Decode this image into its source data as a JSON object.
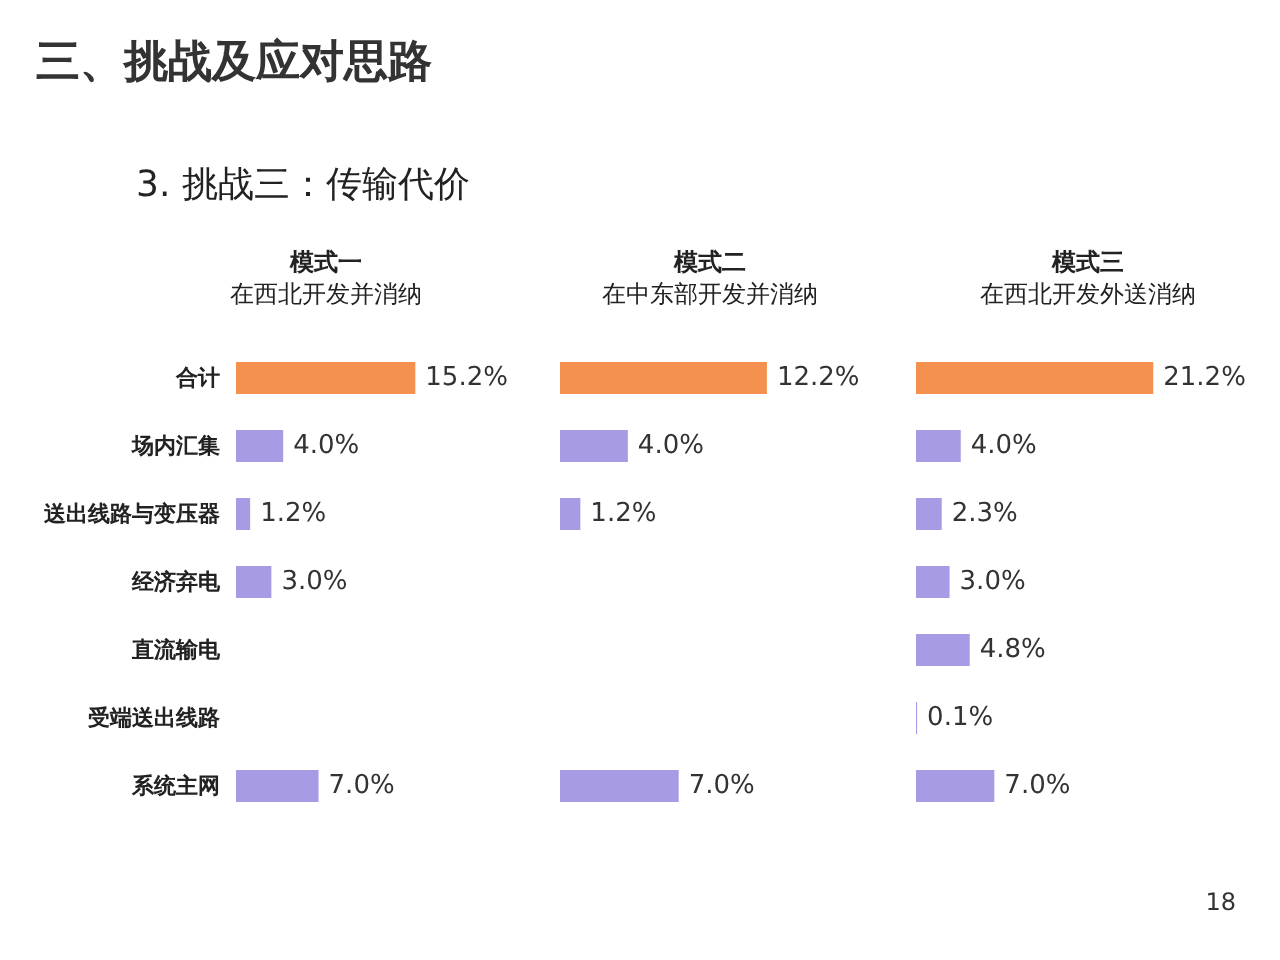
{
  "chart_data": [
    {
      "type": "bar",
      "orientation": "horizontal",
      "title": "模式一",
      "subtitle": "在西北开发并消纳",
      "annotations": [
        "三、挑战及应对思路",
        "3. 挑战三：传输代价",
        "18"
      ],
      "tick_labels": "y",
      "categories": [
        "合计",
        "场内汇集",
        "送出线路与变压器",
        "经济弃电",
        "直流输电",
        "受端送出线路",
        "系统主网"
      ],
      "values": [
        15.2,
        4.0,
        1.2,
        3.0,
        null,
        null,
        7.0
      ],
      "value_labels": [
        "15.2%",
        "4.0%",
        "1.2%",
        "3.0%",
        null,
        null,
        "7.0%"
      ],
      "colors": [
        "#f4914f",
        "#a89be6",
        "#a89be6",
        "#a89be6",
        "#a89be6",
        "#a89be6",
        "#a89be6"
      ]
    },
    {
      "type": "bar",
      "orientation": "horizontal",
      "title": "模式二",
      "subtitle": "在中东部开发并消纳",
      "tick_labels": false,
      "categories": [
        null,
        null,
        null,
        null,
        null,
        null,
        null
      ],
      "values": [
        12.2,
        4.0,
        1.2,
        null,
        null,
        null,
        7.0
      ],
      "value_labels": [
        "12.2%",
        "4.0%",
        "1.2%",
        null,
        null,
        null,
        "7.0%"
      ],
      "colors": [
        "#f4914f",
        "#a89be6",
        "#a89be6",
        "#a89be6",
        "#a89be6",
        "#a89be6",
        "#a89be6"
      ]
    },
    {
      "type": "bar",
      "orientation": "horizontal",
      "title": "模式三",
      "subtitle": "在西北开发外送消纳",
      "tick_labels": false,
      "categories": [
        null,
        null,
        null,
        null,
        null,
        null,
        null
      ],
      "values": [
        21.2,
        4.0,
        2.3,
        3.0,
        4.8,
        0.1,
        7.0
      ],
      "value_labels": [
        "21.2%",
        "4.0%",
        "2.3%",
        "3.0%",
        "4.8%",
        "0.1%",
        "7.0%"
      ],
      "colors": [
        "#f4914f",
        "#a89be6",
        "#a89be6",
        "#a89be6",
        "#a89be6",
        "#a89be6",
        "#a89be6"
      ]
    }
  ]
}
